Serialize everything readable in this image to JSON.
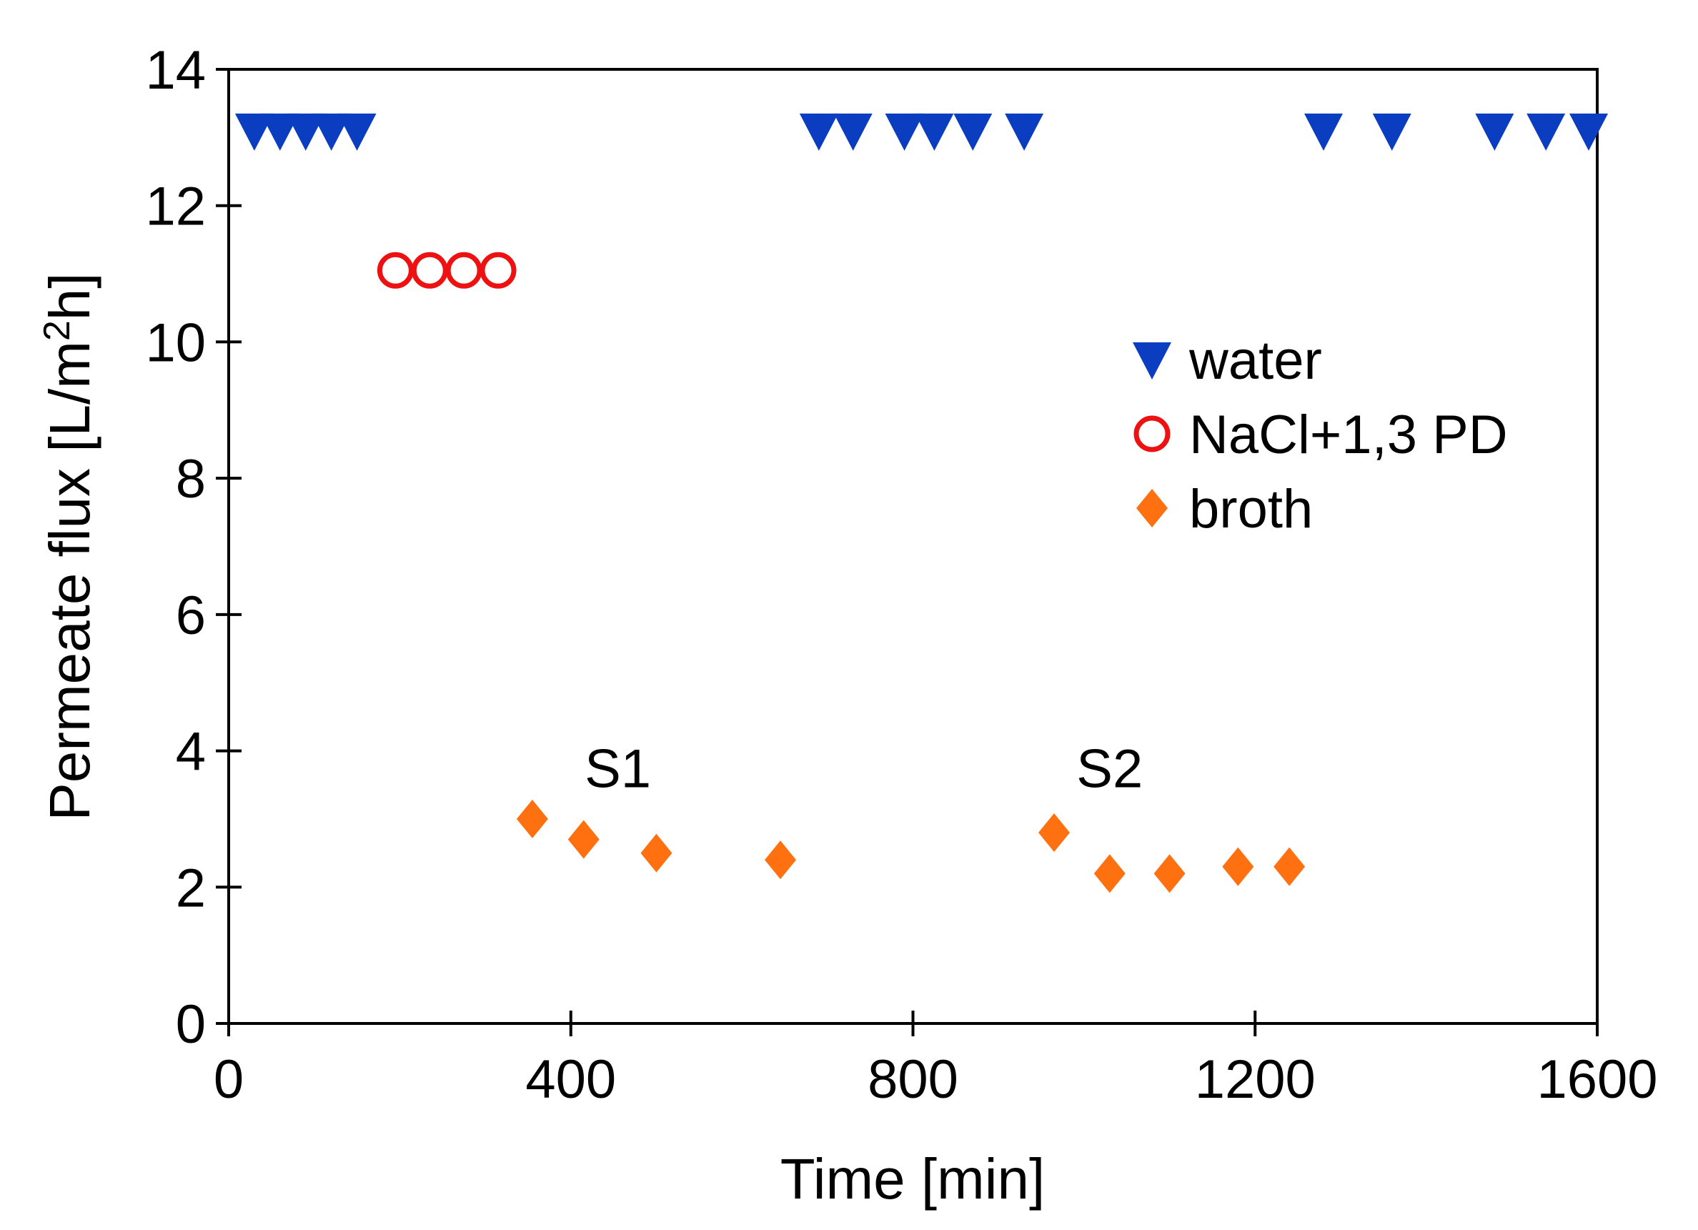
{
  "chart_data": {
    "type": "scatter",
    "title": "",
    "xlabel": "Time [min]",
    "ylabel_parts": {
      "pre": "Permeate flux [L/m",
      "sup": "2",
      "post": "h]"
    },
    "xlim": [
      0,
      1600
    ],
    "ylim": [
      0,
      14
    ],
    "xticks": [
      0,
      400,
      800,
      1200,
      1600
    ],
    "yticks": [
      0,
      2,
      4,
      6,
      8,
      10,
      12,
      14
    ],
    "legend_position": "right",
    "series": [
      {
        "name": "water",
        "marker": "triangle-down",
        "color": "#0a3dbf",
        "points": [
          [
            30,
            13.1
          ],
          [
            60,
            13.1
          ],
          [
            90,
            13.1
          ],
          [
            120,
            13.1
          ],
          [
            150,
            13.1
          ],
          [
            690,
            13.1
          ],
          [
            730,
            13.1
          ],
          [
            790,
            13.1
          ],
          [
            825,
            13.1
          ],
          [
            870,
            13.1
          ],
          [
            930,
            13.1
          ],
          [
            1280,
            13.1
          ],
          [
            1360,
            13.1
          ],
          [
            1480,
            13.1
          ],
          [
            1540,
            13.1
          ],
          [
            1590,
            13.1
          ]
        ]
      },
      {
        "name": "NaCl+1,3 PD",
        "marker": "circle-open",
        "color": "#ee1111",
        "points": [
          [
            195,
            11.05
          ],
          [
            235,
            11.05
          ],
          [
            275,
            11.05
          ],
          [
            315,
            11.05
          ]
        ]
      },
      {
        "name": "broth",
        "marker": "diamond",
        "color": "#ff7010",
        "points": [
          [
            355,
            3.0
          ],
          [
            415,
            2.7
          ],
          [
            500,
            2.5
          ],
          [
            645,
            2.4
          ],
          [
            965,
            2.8
          ],
          [
            1030,
            2.2
          ],
          [
            1100,
            2.2
          ],
          [
            1180,
            2.3
          ],
          [
            1240,
            2.3
          ]
        ]
      }
    ],
    "annotations": [
      {
        "text": "S1",
        "x": 455,
        "y": 3.75
      },
      {
        "text": "S2",
        "x": 1030,
        "y": 3.75
      }
    ]
  }
}
